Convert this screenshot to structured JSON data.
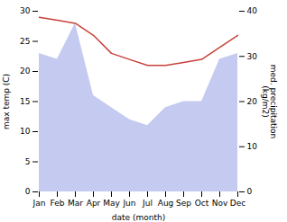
{
  "chart_data": {
    "type": "line",
    "categories": [
      "Jan",
      "Feb",
      "Mar",
      "Apr",
      "May",
      "Jun",
      "Jul",
      "Aug",
      "Sep",
      "Oct",
      "Nov",
      "Dec"
    ],
    "series": [
      {
        "type": "area",
        "color": "#c5caf0",
        "values": [
          23,
          22,
          28,
          16,
          14,
          12,
          11,
          14,
          15,
          15,
          22,
          23
        ]
      },
      {
        "type": "line",
        "color": "#c8413a",
        "values": [
          29.0,
          28.5,
          28.0,
          26.0,
          23.0,
          22.0,
          21.0,
          21.0,
          21.5,
          22.0,
          24.0,
          26.0
        ]
      }
    ],
    "xlabel": "date (month)",
    "ylabel": "max temp (C)",
    "ylim": [
      0,
      30
    ],
    "yticks": [
      0,
      5,
      10,
      15,
      20,
      25,
      30
    ],
    "y2label": "med. precipitation\n(kg/m2)",
    "y2lim": [
      0,
      40
    ],
    "y2ticks": [
      0,
      10,
      20,
      30,
      40
    ]
  }
}
